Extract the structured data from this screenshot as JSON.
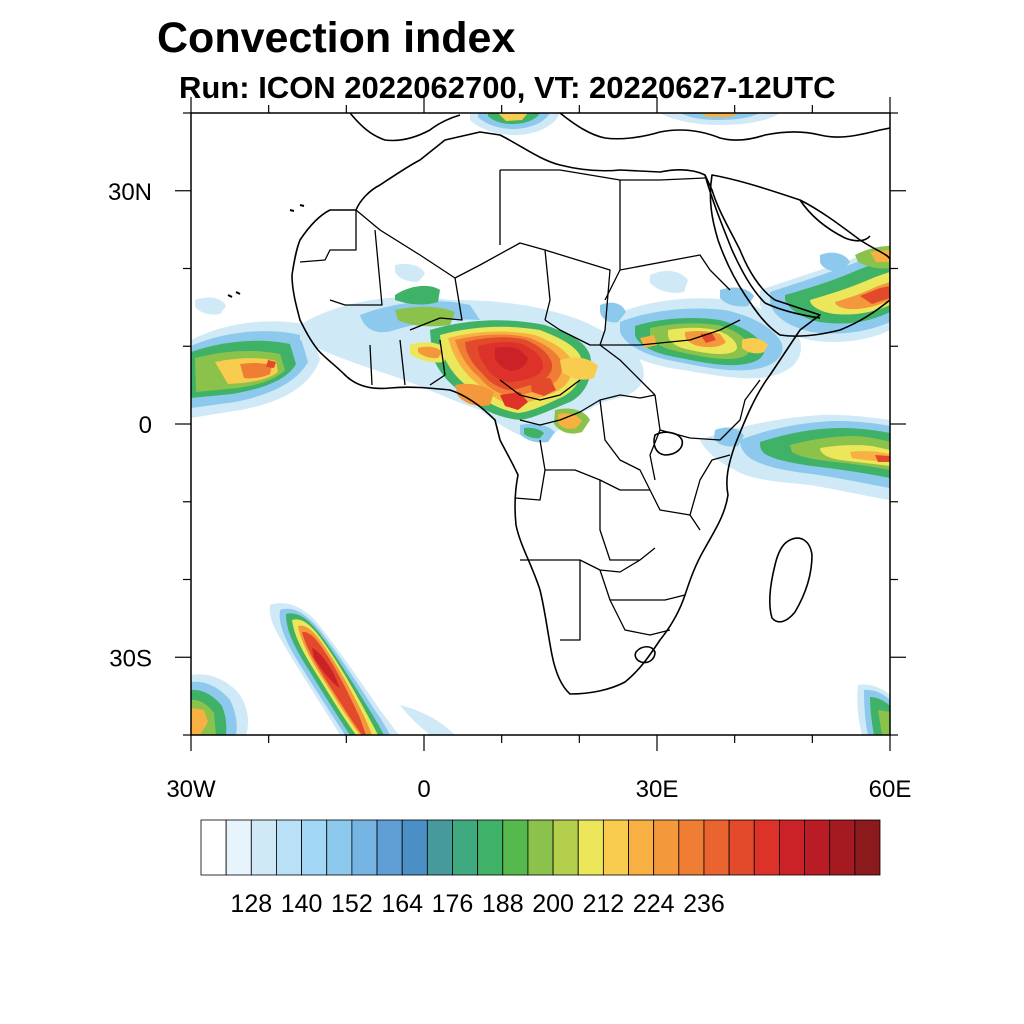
{
  "title": "Convection index",
  "subtitle": "Run: ICON 2022062700,  VT: 20220627-12UTC",
  "map": {
    "lon_range": [
      -30,
      60
    ],
    "lat_range": [
      -40,
      40
    ],
    "x_ticks": [
      {
        "value": -30,
        "label": "30W"
      },
      {
        "value": 0,
        "label": "0"
      },
      {
        "value": 30,
        "label": "30E"
      },
      {
        "value": 60,
        "label": "60E"
      }
    ],
    "y_ticks": [
      {
        "value": 30,
        "label": "30N"
      },
      {
        "value": 0,
        "label": "0"
      },
      {
        "value": -30,
        "label": "30S"
      }
    ],
    "minor_tick_step_deg": 10,
    "convection_areas": [
      {
        "name": "west-africa-sahel-cluster",
        "level": 212
      },
      {
        "name": "ethiopian-highlands-cluster",
        "level": 200
      },
      {
        "name": "arabian-peninsula-cluster",
        "level": 212
      },
      {
        "name": "atlantic-itcz-band",
        "level": 188
      },
      {
        "name": "indian-ocean-band",
        "level": 188
      },
      {
        "name": "south-atlantic-frontal-band",
        "level": 224
      },
      {
        "name": "southwest-atlantic-patch",
        "level": 164
      },
      {
        "name": "southern-indian-ocean-patch",
        "level": 164
      },
      {
        "name": "mediterranean-patch",
        "level": 176
      }
    ]
  },
  "colorbar": {
    "colors": [
      "#ffffff",
      "#e8f4fb",
      "#cfe9f7",
      "#b9e0f6",
      "#a2d8f5",
      "#8cc9ec",
      "#76b5e3",
      "#5f9fd6",
      "#4a8fc5",
      "#479a9c",
      "#3faa80",
      "#3fb268",
      "#56b94d",
      "#8bc24b",
      "#b3cf4b",
      "#ece65a",
      "#f8cc4f",
      "#f8b043",
      "#f4983c",
      "#ef7d34",
      "#ea6430",
      "#e34a2c",
      "#dd3229",
      "#cb2228",
      "#b91c25",
      "#a51a21",
      "#8a1a1c"
    ],
    "labels": [
      "128",
      "140",
      "152",
      "164",
      "176",
      "188",
      "200",
      "212",
      "224",
      "236"
    ]
  }
}
